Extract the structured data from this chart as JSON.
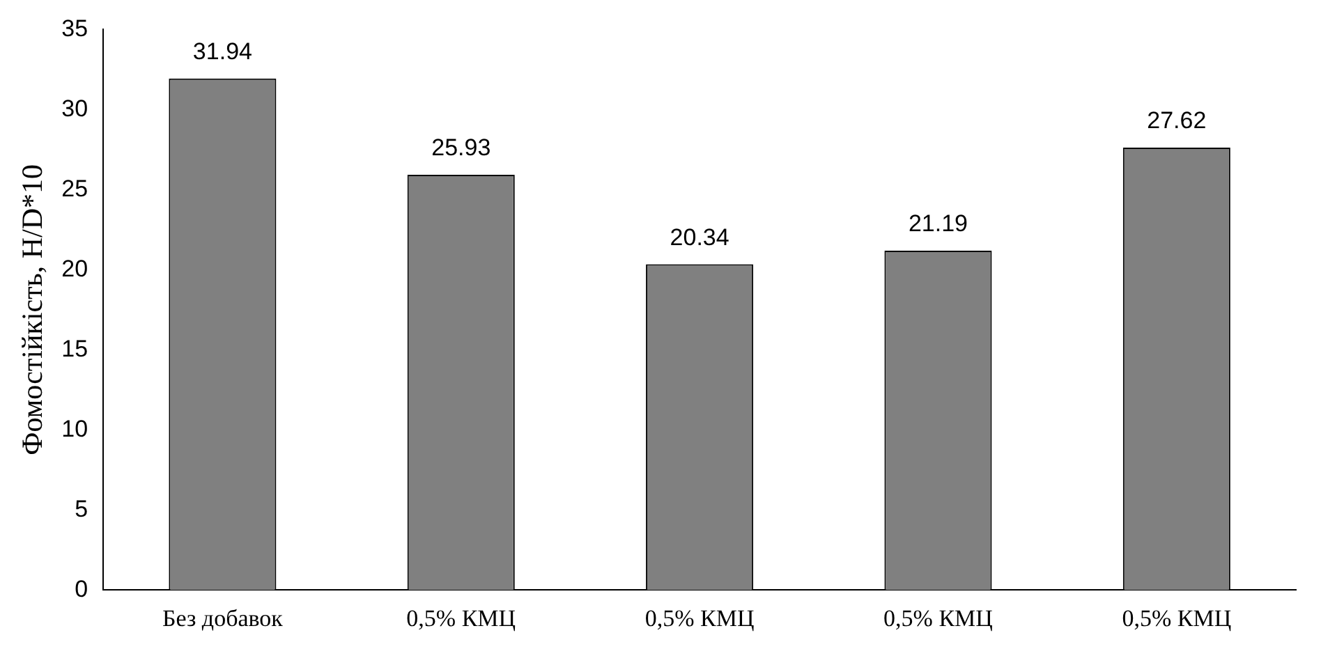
{
  "chart_data": {
    "type": "bar",
    "ylabel": "Фомостійкість, Н/D*10",
    "categories": [
      "Без добавок",
      "0,5% КМЦ",
      "0,5% КМЦ",
      "0,5% КМЦ",
      "0,5% КМЦ"
    ],
    "values": [
      31.94,
      25.93,
      20.34,
      21.19,
      27.62
    ],
    "color": "#808080",
    "ylim": [
      0,
      35
    ],
    "yticks": [
      0,
      5,
      10,
      15,
      20,
      25,
      30,
      35
    ],
    "grid": false,
    "data_labels": true
  }
}
